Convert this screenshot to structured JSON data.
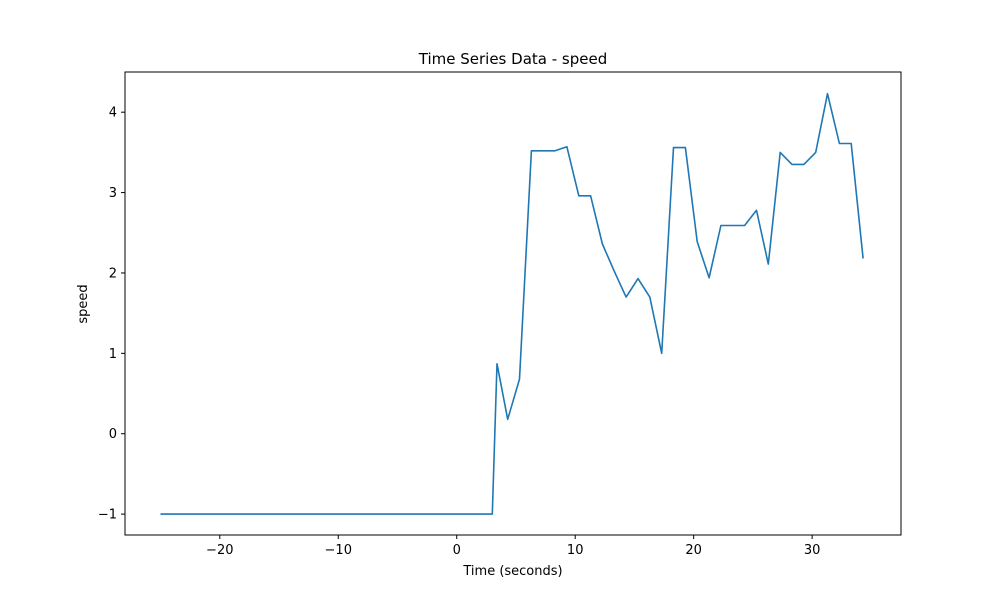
{
  "chart_data": {
    "type": "line",
    "title": "Time Series Data - speed",
    "xlabel": "Time (seconds)",
    "ylabel": "speed",
    "xlim": [
      -28,
      37.5
    ],
    "ylim": [
      -1.26,
      4.5
    ],
    "xticks": [
      -20,
      -10,
      0,
      10,
      20,
      30
    ],
    "yticks": [
      -1,
      0,
      1,
      2,
      3,
      4
    ],
    "xtick_labels": [
      "−20",
      "−10",
      "0",
      "10",
      "20",
      "30"
    ],
    "ytick_labels": [
      "−1",
      "0",
      "1",
      "2",
      "3",
      "4"
    ],
    "grid": false,
    "color": "#1f77b4",
    "series": [
      {
        "x": [
          -25,
          3,
          3.4,
          4.3,
          5.3,
          6.3,
          8.3,
          9.3,
          10.3,
          11.3,
          12.3,
          13.3,
          14.3,
          15.3,
          16.3,
          17.3,
          18.3,
          19.3,
          20.3,
          21.3,
          22.3,
          23.3,
          24.3,
          25.3,
          26.3,
          27.3,
          28.3,
          29.3,
          30.3,
          31.3,
          32.3,
          33.3,
          34.3
        ],
        "y": [
          -1.0,
          -1.0,
          0.87,
          0.18,
          0.68,
          3.52,
          3.52,
          3.57,
          2.96,
          2.96,
          2.36,
          2.02,
          1.7,
          1.93,
          1.7,
          1.0,
          3.56,
          3.56,
          2.39,
          1.94,
          2.59,
          2.59,
          2.59,
          2.78,
          2.11,
          3.5,
          3.35,
          3.35,
          3.5,
          4.23,
          3.61,
          3.61,
          2.18
        ]
      }
    ]
  }
}
